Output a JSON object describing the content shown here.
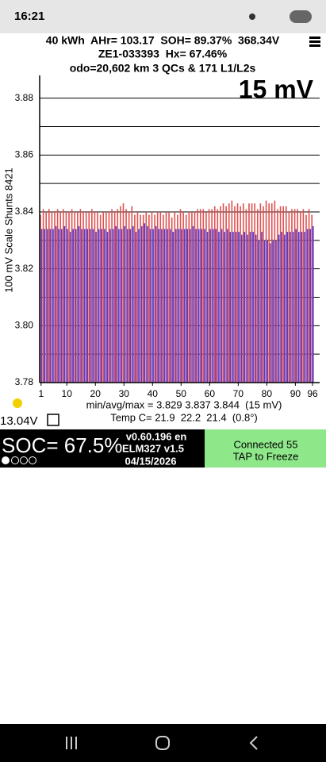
{
  "status_bar": {
    "time": "16:21"
  },
  "header": {
    "line1": "40 kWh  AHr= 103.17  SOH= 89.37%  368.34V",
    "line2": "ZE1-033393  Hx= 67.46%",
    "line3": "odo=20,602 km 3 QCs & 171 L1/L2s"
  },
  "chart_data": {
    "type": "bar",
    "title": "15 mV",
    "y_label": "100 mV Scale Shunts 8421",
    "x": [
      1,
      2,
      3,
      4,
      5,
      6,
      7,
      8,
      9,
      10,
      11,
      12,
      13,
      14,
      15,
      16,
      17,
      18,
      19,
      20,
      21,
      22,
      23,
      24,
      25,
      26,
      27,
      28,
      29,
      30,
      31,
      32,
      33,
      34,
      35,
      36,
      37,
      38,
      39,
      40,
      41,
      42,
      43,
      44,
      45,
      46,
      47,
      48,
      49,
      50,
      51,
      52,
      53,
      54,
      55,
      56,
      57,
      58,
      59,
      60,
      61,
      62,
      63,
      64,
      65,
      66,
      67,
      68,
      69,
      70,
      71,
      72,
      73,
      74,
      75,
      76,
      77,
      78,
      79,
      80,
      81,
      82,
      83,
      84,
      85,
      86,
      87,
      88,
      89,
      90,
      91,
      92,
      93,
      94,
      95,
      96
    ],
    "series": [
      {
        "color": "#e05050",
        "values": [
          3.839,
          3.841,
          3.84,
          3.841,
          3.84,
          3.84,
          3.841,
          3.84,
          3.841,
          3.84,
          3.84,
          3.841,
          3.84,
          3.84,
          3.841,
          3.84,
          3.84,
          3.84,
          3.841,
          3.84,
          3.84,
          3.839,
          3.84,
          3.84,
          3.84,
          3.841,
          3.84,
          3.841,
          3.842,
          3.843,
          3.841,
          3.84,
          3.842,
          3.839,
          3.84,
          3.839,
          3.839,
          3.84,
          3.839,
          3.84,
          3.839,
          3.84,
          3.84,
          3.839,
          3.84,
          3.84,
          3.838,
          3.84,
          3.839,
          3.841,
          3.84,
          3.839,
          3.84,
          3.84,
          3.84,
          3.841,
          3.841,
          3.841,
          3.84,
          3.841,
          3.841,
          3.842,
          3.841,
          3.842,
          3.843,
          3.842,
          3.843,
          3.844,
          3.842,
          3.843,
          3.842,
          3.843,
          3.841,
          3.843,
          3.843,
          3.843,
          3.841,
          3.843,
          3.842,
          3.844,
          3.843,
          3.843,
          3.844,
          3.841,
          3.842,
          3.842,
          3.842,
          3.84,
          3.841,
          3.841,
          3.841,
          3.84,
          3.841,
          3.839,
          3.841,
          3.839
        ]
      },
      {
        "color": "#4a3ee0",
        "values": [
          3.834,
          3.834,
          3.834,
          3.834,
          3.834,
          3.835,
          3.834,
          3.834,
          3.835,
          3.834,
          3.833,
          3.834,
          3.834,
          3.835,
          3.834,
          3.834,
          3.834,
          3.834,
          3.834,
          3.833,
          3.834,
          3.834,
          3.834,
          3.833,
          3.834,
          3.834,
          3.835,
          3.834,
          3.834,
          3.835,
          3.834,
          3.834,
          3.835,
          3.833,
          3.834,
          3.835,
          3.836,
          3.835,
          3.834,
          3.834,
          3.835,
          3.834,
          3.834,
          3.834,
          3.834,
          3.834,
          3.833,
          3.834,
          3.834,
          3.834,
          3.834,
          3.834,
          3.834,
          3.835,
          3.834,
          3.834,
          3.834,
          3.834,
          3.833,
          3.834,
          3.834,
          3.834,
          3.833,
          3.834,
          3.833,
          3.834,
          3.833,
          3.833,
          3.833,
          3.833,
          3.832,
          3.833,
          3.832,
          3.833,
          3.833,
          3.832,
          3.83,
          3.833,
          3.83,
          3.83,
          3.829,
          3.83,
          3.83,
          3.832,
          3.833,
          3.832,
          3.833,
          3.833,
          3.833,
          3.834,
          3.833,
          3.833,
          3.833,
          3.834,
          3.834,
          3.835
        ]
      }
    ],
    "xlim": [
      0.5,
      98.5
    ],
    "xticks": [
      1,
      10,
      20,
      30,
      40,
      50,
      60,
      70,
      80,
      90,
      96
    ],
    "ylim": [
      3.78,
      3.888
    ],
    "yticks": [
      {
        "value": 3.78,
        "label": "3.78"
      },
      {
        "value": 3.8,
        "label": "3.80"
      },
      3.82,
      3.84,
      3.86,
      3.88
    ],
    "minor_yticks": [
      3.79,
      3.81,
      3.83,
      3.85,
      3.87
    ],
    "grid": true,
    "stats": "min/avg/max = 3.829 3.837 3.844  (15 mV)",
    "temp": "Temp C= 21.9  22.2  21.4  (0.8°)"
  },
  "footer": {
    "voltage": "13.04V",
    "soc": "SOC= 67.5%",
    "version": "v0.60.196 en",
    "adapter": "ELM327 v1.5",
    "date": "04/15/2026",
    "connected": "Connected 55",
    "action": "TAP to Freeze"
  }
}
